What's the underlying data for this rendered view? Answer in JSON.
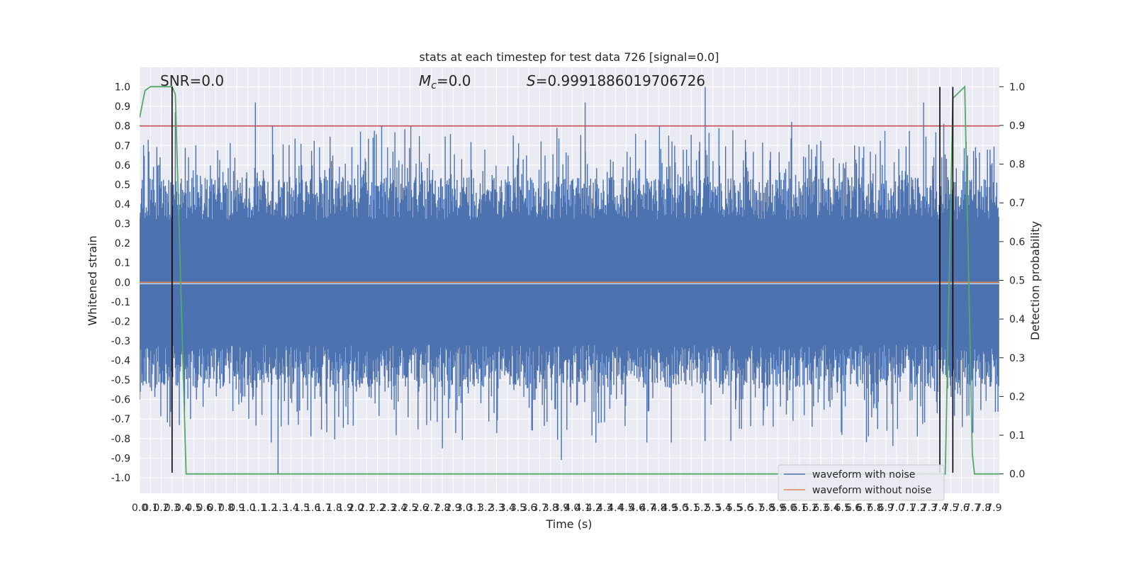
{
  "chart_data": {
    "type": "line",
    "title": "stats at each timestep for test data 726 [signal=0.0]",
    "xlabel": "Time (s)",
    "ylabel_left": "Whitened strain",
    "ylabel_right": "Detection probability",
    "xlim": [
      0.0,
      7.95
    ],
    "ylim_left": [
      -1.08,
      1.1
    ],
    "ylim_right": [
      -0.05,
      1.05
    ],
    "x_ticks": [
      0.0,
      0.1,
      0.2,
      0.3,
      0.4,
      0.5,
      0.6,
      0.7,
      0.8,
      0.9,
      1.0,
      1.1,
      1.2,
      1.3,
      1.4,
      1.5,
      1.6,
      1.7,
      1.8,
      1.9,
      2.0,
      2.1,
      2.2,
      2.3,
      2.4,
      2.5,
      2.6,
      2.7,
      2.8,
      2.9,
      3.0,
      3.1,
      3.2,
      3.3,
      3.4,
      3.5,
      3.6,
      3.7,
      3.8,
      3.9,
      4.0,
      4.1,
      4.2,
      4.3,
      4.4,
      4.5,
      4.6,
      4.7,
      4.8,
      4.9,
      5.0,
      5.1,
      5.2,
      5.3,
      5.4,
      5.5,
      5.6,
      5.7,
      5.8,
      5.9,
      6.0,
      6.1,
      6.2,
      6.3,
      6.4,
      6.5,
      6.6,
      6.7,
      6.8,
      6.9,
      7.0,
      7.1,
      7.2,
      7.3,
      7.4,
      7.5,
      7.6,
      7.7,
      7.8,
      7.9
    ],
    "y_ticks_left": [
      -1.0,
      -0.9,
      -0.8,
      -0.7,
      -0.6,
      -0.5,
      -0.4,
      -0.3,
      -0.2,
      -0.1,
      0.0,
      0.1,
      0.2,
      0.3,
      0.4,
      0.5,
      0.6,
      0.7,
      0.8,
      0.9,
      1.0
    ],
    "y_ticks_right": [
      0.0,
      0.1,
      0.2,
      0.3,
      0.4,
      0.5,
      0.6,
      0.7,
      0.8,
      0.9,
      1.0
    ],
    "grid": true,
    "legend_placement": "lower right",
    "annotations": {
      "snr": "SNR=0.0",
      "mc_symbol": "M",
      "mc_sub": "c",
      "mc_value": "=0.0",
      "s_symbol": "S",
      "s_value": "=0.9991886019706726"
    },
    "series": [
      {
        "name": "waveform with noise",
        "color": "#4c72b0",
        "description": "dense whitened noise, envelope approx ±0.4 to ±0.9",
        "peak_max": 1.0,
        "peak_min": -0.98
      },
      {
        "name": "waveform without noise",
        "color": "#dd8452",
        "values_constant": 0.0
      }
    ],
    "detection_probability": {
      "color": "#55a868",
      "x": [
        0.0,
        0.05,
        0.1,
        0.3,
        0.33,
        0.43,
        0.45,
        7.45,
        7.52,
        7.63,
        7.7,
        7.72,
        7.95
      ],
      "y": [
        0.92,
        0.99,
        1.0,
        1.0,
        0.98,
        0.0,
        0.0,
        0.0,
        0.97,
        1.0,
        0.05,
        0.0,
        0.0
      ]
    },
    "threshold": {
      "value": 0.8,
      "color": "#c44e52"
    },
    "vertical_markers": {
      "x": [
        0.3,
        7.4,
        7.52
      ],
      "ymin": -0.975,
      "ymax": 1.0,
      "color": "#000000"
    }
  }
}
